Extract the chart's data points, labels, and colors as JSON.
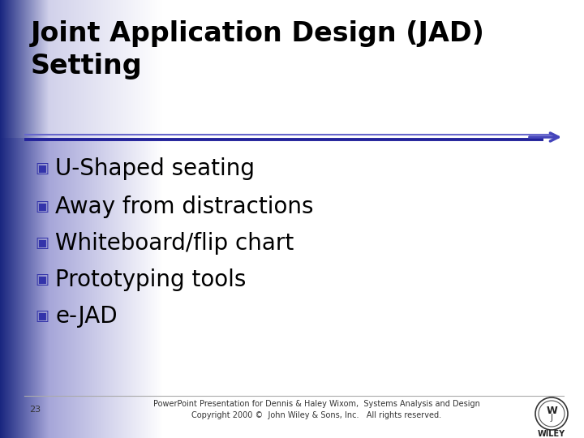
{
  "title_line1": "Joint Application Design (JAD)",
  "title_line2": "Setting",
  "bullet_points": [
    "U-Shaped seating",
    "Away from distractions",
    "Whiteboard/flip chart",
    "Prototyping tools",
    "e-JAD"
  ],
  "title_color": "#000000",
  "bullet_color": "#000000",
  "bullet_marker_color": "#3333aa",
  "arrow_color": "#4444bb",
  "line_color": "#3333aa",
  "separator_color": "#3333aa",
  "footer_line_color": "#aaaaaa",
  "footer_text_line1": "PowerPoint Presentation for Dennis & Haley Wixom,  Systems Analysis and Design",
  "footer_text_line2": "Copyright 2000 ©  John Wiley & Sons, Inc.   All rights reserved.",
  "page_number": "23",
  "wiley_text": "WILEY",
  "bg_left_color": "#1a2a8a",
  "bg_mid_color": "#c0c8e8",
  "bg_right_color": "#ffffff",
  "title_area_color": "#f5f5ff",
  "title_fontsize": 24,
  "bullet_fontsize": 20,
  "footer_fontsize": 7
}
